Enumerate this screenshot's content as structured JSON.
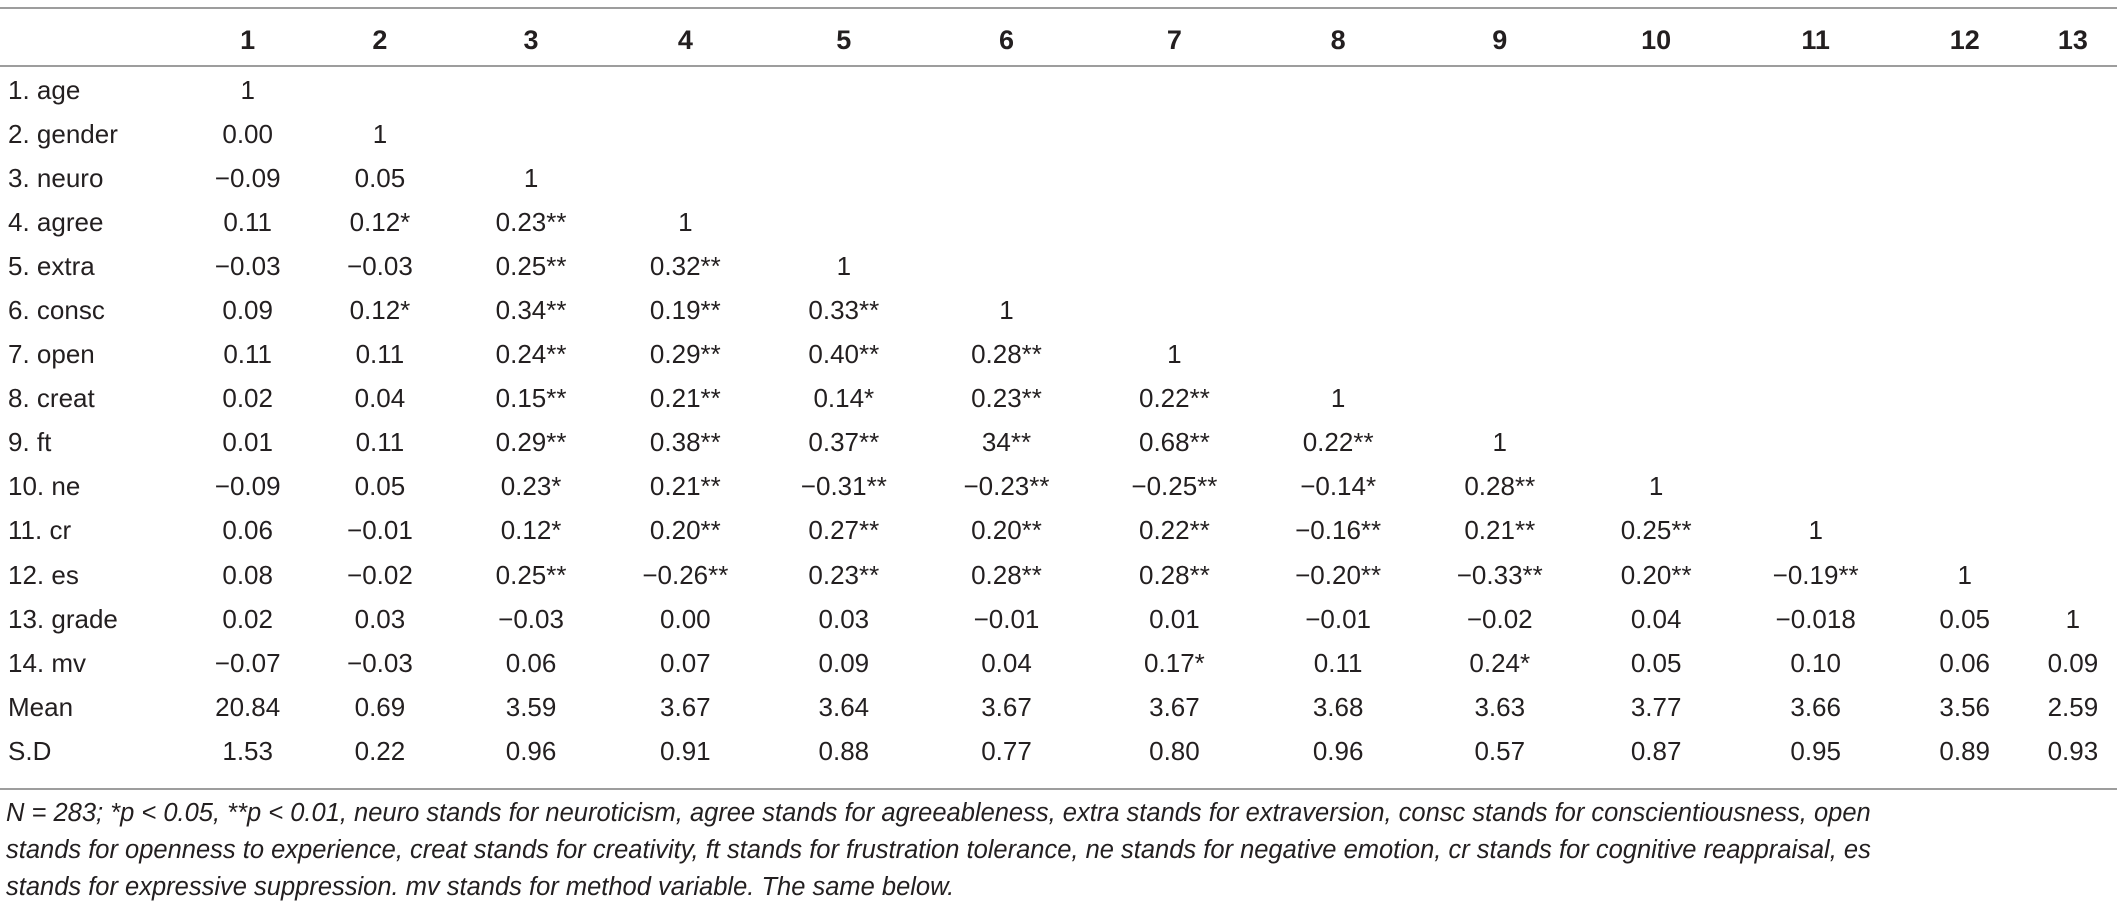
{
  "table": {
    "headers": [
      "",
      "1",
      "2",
      "3",
      "4",
      "5",
      "6",
      "7",
      "8",
      "9",
      "10",
      "11",
      "12",
      "13"
    ],
    "rows": [
      {
        "label": "1. age",
        "cells": [
          "1",
          "",
          "",
          "",
          "",
          "",
          "",
          "",
          "",
          "",
          "",
          "",
          ""
        ]
      },
      {
        "label": "2. gender",
        "cells": [
          "0.00",
          "1",
          "",
          "",
          "",
          "",
          "",
          "",
          "",
          "",
          "",
          "",
          ""
        ]
      },
      {
        "label": "3. neuro",
        "cells": [
          "−0.09",
          "0.05",
          "1",
          "",
          "",
          "",
          "",
          "",
          "",
          "",
          "",
          "",
          ""
        ]
      },
      {
        "label": "4. agree",
        "cells": [
          "0.11",
          "0.12*",
          "0.23**",
          "1",
          "",
          "",
          "",
          "",
          "",
          "",
          "",
          "",
          ""
        ]
      },
      {
        "label": "5. extra",
        "cells": [
          "−0.03",
          "−0.03",
          "0.25**",
          "0.32**",
          "1",
          "",
          "",
          "",
          "",
          "",
          "",
          "",
          ""
        ]
      },
      {
        "label": "6. consc",
        "cells": [
          "0.09",
          "0.12*",
          "0.34**",
          "0.19**",
          "0.33**",
          "1",
          "",
          "",
          "",
          "",
          "",
          "",
          ""
        ]
      },
      {
        "label": "7. open",
        "cells": [
          "0.11",
          "0.11",
          "0.24**",
          "0.29**",
          "0.40**",
          "0.28**",
          "1",
          "",
          "",
          "",
          "",
          "",
          ""
        ]
      },
      {
        "label": "8. creat",
        "cells": [
          "0.02",
          "0.04",
          "0.15**",
          "0.21**",
          "0.14*",
          "0.23**",
          "0.22**",
          "1",
          "",
          "",
          "",
          "",
          ""
        ]
      },
      {
        "label": "9. ft",
        "cells": [
          "0.01",
          "0.11",
          "0.29**",
          "0.38**",
          "0.37**",
          "34**",
          "0.68**",
          "0.22**",
          "1",
          "",
          "",
          "",
          ""
        ]
      },
      {
        "label": "10. ne",
        "cells": [
          "−0.09",
          "0.05",
          "0.23*",
          "0.21**",
          "−0.31**",
          "−0.23**",
          "−0.25**",
          "−0.14*",
          "0.28**",
          "1",
          "",
          "",
          ""
        ]
      },
      {
        "label": "11. cr",
        "cells": [
          "0.06",
          "−0.01",
          "0.12*",
          "0.20**",
          "0.27**",
          "0.20**",
          "0.22**",
          "−0.16**",
          "0.21**",
          "0.25**",
          "1",
          "",
          ""
        ]
      },
      {
        "label": "12. es",
        "cells": [
          "0.08",
          "−0.02",
          "0.25**",
          "−0.26**",
          "0.23**",
          "0.28**",
          "0.28**",
          "−0.20**",
          "−0.33**",
          "0.20**",
          "−0.19**",
          "1",
          ""
        ]
      },
      {
        "label": "13. grade",
        "cells": [
          "0.02",
          "0.03",
          "−0.03",
          "0.00",
          "0.03",
          "−0.01",
          "0.01",
          "−0.01",
          "−0.02",
          "0.04",
          "−0.018",
          "0.05",
          "1"
        ]
      },
      {
        "label": "14. mv",
        "cells": [
          "−0.07",
          "−0.03",
          "0.06",
          "0.07",
          "0.09",
          "0.04",
          "0.17*",
          "0.11",
          "0.24*",
          "0.05",
          "0.10",
          "0.06",
          "0.09"
        ]
      },
      {
        "label": "Mean",
        "cells": [
          "20.84",
          "0.69",
          "3.59",
          "3.67",
          "3.64",
          "3.67",
          "3.67",
          "3.68",
          "3.63",
          "3.77",
          "3.66",
          "3.56",
          "2.59"
        ]
      },
      {
        "label": "S.D",
        "cells": [
          "1.53",
          "0.22",
          "0.96",
          "0.91",
          "0.88",
          "0.77",
          "0.80",
          "0.96",
          "0.57",
          "0.87",
          "0.95",
          "0.89",
          "0.93"
        ]
      }
    ]
  },
  "notes": [
    "N = 283; *p < 0.05, **p < 0.01, neuro stands for neuroticism, agree stands for agreeableness, extra stands for extraversion, consc stands for conscientiousness, open",
    "stands for openness to experience, creat stands for creativity, ft stands for frustration tolerance, ne stands for negative emotion, cr stands for cognitive reappraisal, es",
    "stands for expressive suppression. mv stands for method variable. The same below."
  ]
}
